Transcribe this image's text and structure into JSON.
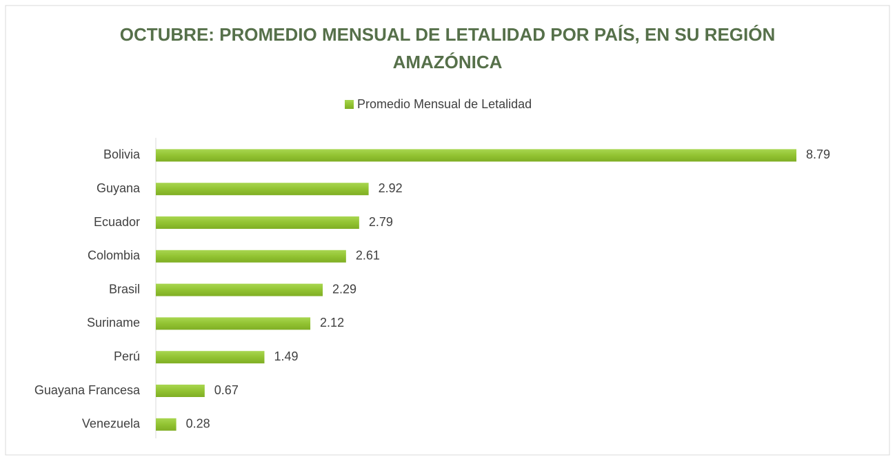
{
  "chart_data": {
    "type": "bar",
    "orientation": "horizontal",
    "title": "OCTUBRE: PROMEDIO MENSUAL DE LETALIDAD POR PAÍS, EN SU REGIÓN AMAZÓNICA",
    "categories": [
      "Bolivia",
      "Guyana",
      "Ecuador",
      "Colombia",
      "Brasil",
      "Suriname",
      "Perú",
      "Guayana Francesa",
      "Venezuela"
    ],
    "series": [
      {
        "name": "Promedio Mensual de Letalidad",
        "color": "#92c332",
        "values": [
          8.79,
          2.92,
          2.79,
          2.61,
          2.29,
          2.12,
          1.49,
          0.67,
          0.28
        ]
      }
    ],
    "legend": "top",
    "grid": false
  }
}
